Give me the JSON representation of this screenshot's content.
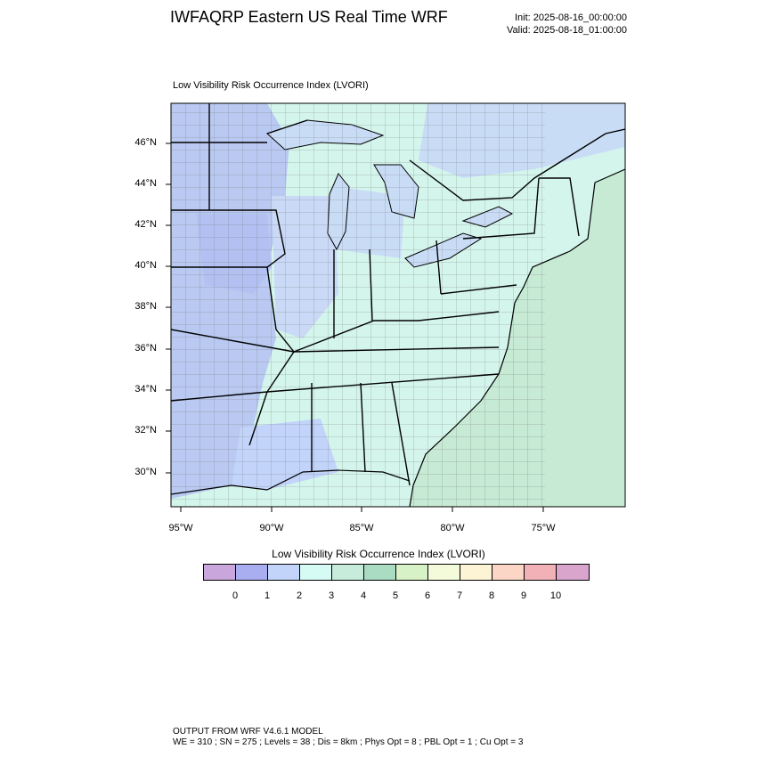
{
  "header": {
    "title": "IWFAQRP Eastern US Real Time WRF",
    "init": "Init: 2025-08-16_00:00:00",
    "valid": "Valid: 2025-08-18_01:00:00"
  },
  "map": {
    "subtitle": "Low Visibility Risk Occurrence Index   (LVORI)",
    "lat_labels": [
      "46°N",
      "44°N",
      "42°N",
      "40°N",
      "38°N",
      "36°N",
      "34°N",
      "32°N",
      "30°N"
    ],
    "lon_labels": [
      "95°W",
      "90°W",
      "85°W",
      "80°W",
      "75°W"
    ],
    "ocean_color": "#c7ead5",
    "land_low_color": "#c9dcf6",
    "land_mid_color": "#d4f5ec",
    "west_color": "#b9c9f1"
  },
  "colorbar": {
    "title": "Low Visibility Risk Occurrence Index  (LVORI)",
    "colors": [
      "#c9a7dc",
      "#a9aef0",
      "#c2d4fa",
      "#d6fbf4",
      "#c7ecdc",
      "#a9dcc3",
      "#d7f2c7",
      "#f4fbdb",
      "#fdf4d6",
      "#fbd6c6",
      "#f1b1b6",
      "#d9a5cd"
    ],
    "labels": [
      "0",
      "1",
      "2",
      "3",
      "4",
      "5",
      "6",
      "7",
      "8",
      "9",
      "10"
    ]
  },
  "footer": {
    "line1": "OUTPUT FROM WRF V4.6.1 MODEL",
    "line2": "WE = 310 ; SN = 275 ; Levels = 38 ; Dis = 8km ; Phys Opt = 8 ; PBL Opt = 1 ; Cu Opt = 3"
  }
}
